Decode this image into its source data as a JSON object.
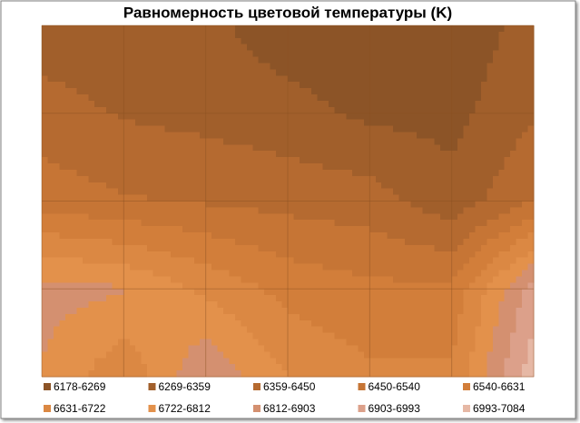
{
  "chart_data": {
    "type": "contour",
    "title": "Равномерность цветовой температуры (K)",
    "z": [
      [
        6300,
        6300,
        6290,
        6220,
        6200,
        6210,
        6300
      ],
      [
        6400,
        6350,
        6330,
        6300,
        6250,
        6240,
        6350
      ],
      [
        6500,
        6460,
        6440,
        6420,
        6400,
        6300,
        6450
      ],
      [
        6850,
        6820,
        6700,
        6600,
        6560,
        6560,
        6950
      ],
      [
        6800,
        6650,
        6900,
        6720,
        6650,
        6650,
        7050
      ]
    ],
    "bands": [
      {
        "name": "6178-6269",
        "range": [
          6178,
          6269
        ],
        "color": "#8c5427"
      },
      {
        "name": "6269-6359",
        "range": [
          6269,
          6359
        ],
        "color": "#a15f2b"
      },
      {
        "name": "6359-6450",
        "range": [
          6359,
          6450
        ],
        "color": "#b56a30"
      },
      {
        "name": "6450-6540",
        "range": [
          6450,
          6540
        ],
        "color": "#c67535"
      },
      {
        "name": "6540-6631",
        "range": [
          6540,
          6631
        ],
        "color": "#d27e3a"
      },
      {
        "name": "6631-6722",
        "range": [
          6631,
          6722
        ],
        "color": "#db8843"
      },
      {
        "name": "6722-6812",
        "range": [
          6722,
          6812
        ],
        "color": "#e3914b"
      },
      {
        "name": "6812-6903",
        "range": [
          6812,
          6903
        ],
        "color": "#d49070"
      },
      {
        "name": "6903-6993",
        "range": [
          6903,
          6993
        ],
        "color": "#dca08a"
      },
      {
        "name": "6993-7084",
        "range": [
          6993,
          7084
        ],
        "color": "#e6b8a5"
      }
    ],
    "grid": true
  }
}
